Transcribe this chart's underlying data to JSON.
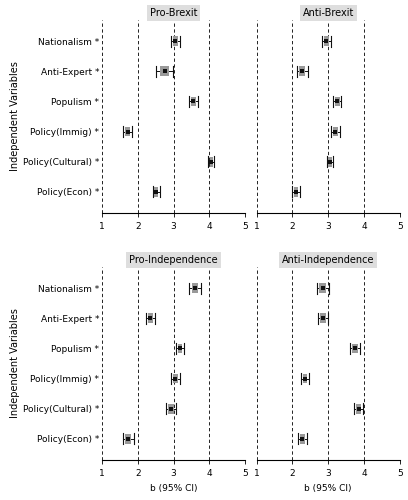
{
  "rows": [
    "Nationalism",
    "Anti-Expert",
    "Populism",
    "Policy(Immig)",
    "Policy(Cultural)",
    "Policy(Econ)"
  ],
  "panels": [
    {
      "title": "Pro-Brexit",
      "means": [
        3.05,
        2.75,
        3.55,
        1.72,
        4.05,
        2.52
      ],
      "ci_lo": [
        2.93,
        2.52,
        3.43,
        1.6,
        3.97,
        2.42
      ],
      "ci_hi": [
        3.17,
        2.98,
        3.67,
        1.84,
        4.13,
        2.62
      ],
      "xlim": [
        1,
        5
      ],
      "xticks": [
        1,
        2,
        3,
        4,
        5
      ]
    },
    {
      "title": "Anti-Brexit",
      "means": [
        2.95,
        2.28,
        3.25,
        3.2,
        3.05,
        2.1
      ],
      "ci_lo": [
        2.83,
        2.13,
        3.13,
        3.08,
        2.97,
        1.98
      ],
      "ci_hi": [
        3.07,
        2.43,
        3.37,
        3.32,
        3.13,
        2.22
      ],
      "xlim": [
        1,
        5
      ],
      "xticks": [
        1,
        2,
        3,
        4,
        5
      ]
    },
    {
      "title": "Pro-Independence",
      "means": [
        3.6,
        2.35,
        3.18,
        3.05,
        2.92,
        1.73
      ],
      "ci_lo": [
        3.43,
        2.23,
        3.06,
        2.93,
        2.78,
        1.58
      ],
      "ci_hi": [
        3.77,
        2.47,
        3.3,
        3.17,
        3.06,
        1.88
      ],
      "xlim": [
        1,
        5
      ],
      "xticks": [
        1,
        2,
        3,
        4,
        5
      ]
    },
    {
      "title": "Anti-Independence",
      "means": [
        2.85,
        2.85,
        3.75,
        2.35,
        3.85,
        2.28
      ],
      "ci_lo": [
        2.68,
        2.7,
        3.6,
        2.23,
        3.72,
        2.15
      ],
      "ci_hi": [
        3.02,
        3.0,
        3.9,
        2.47,
        3.98,
        2.41
      ],
      "xlim": [
        1,
        5
      ],
      "xticks": [
        1,
        2,
        3,
        4,
        5
      ]
    }
  ],
  "ylabel": "Independent Variables",
  "xlabel": "b (95% CI)",
  "point_color": "#111111",
  "ci_line_color": "#111111",
  "ci_box_color": "#999999",
  "title_bg": "#dedede",
  "title_fontsize": 7,
  "label_fontsize": 6.5,
  "tick_fontsize": 6.5,
  "ylabel_fontsize": 7
}
